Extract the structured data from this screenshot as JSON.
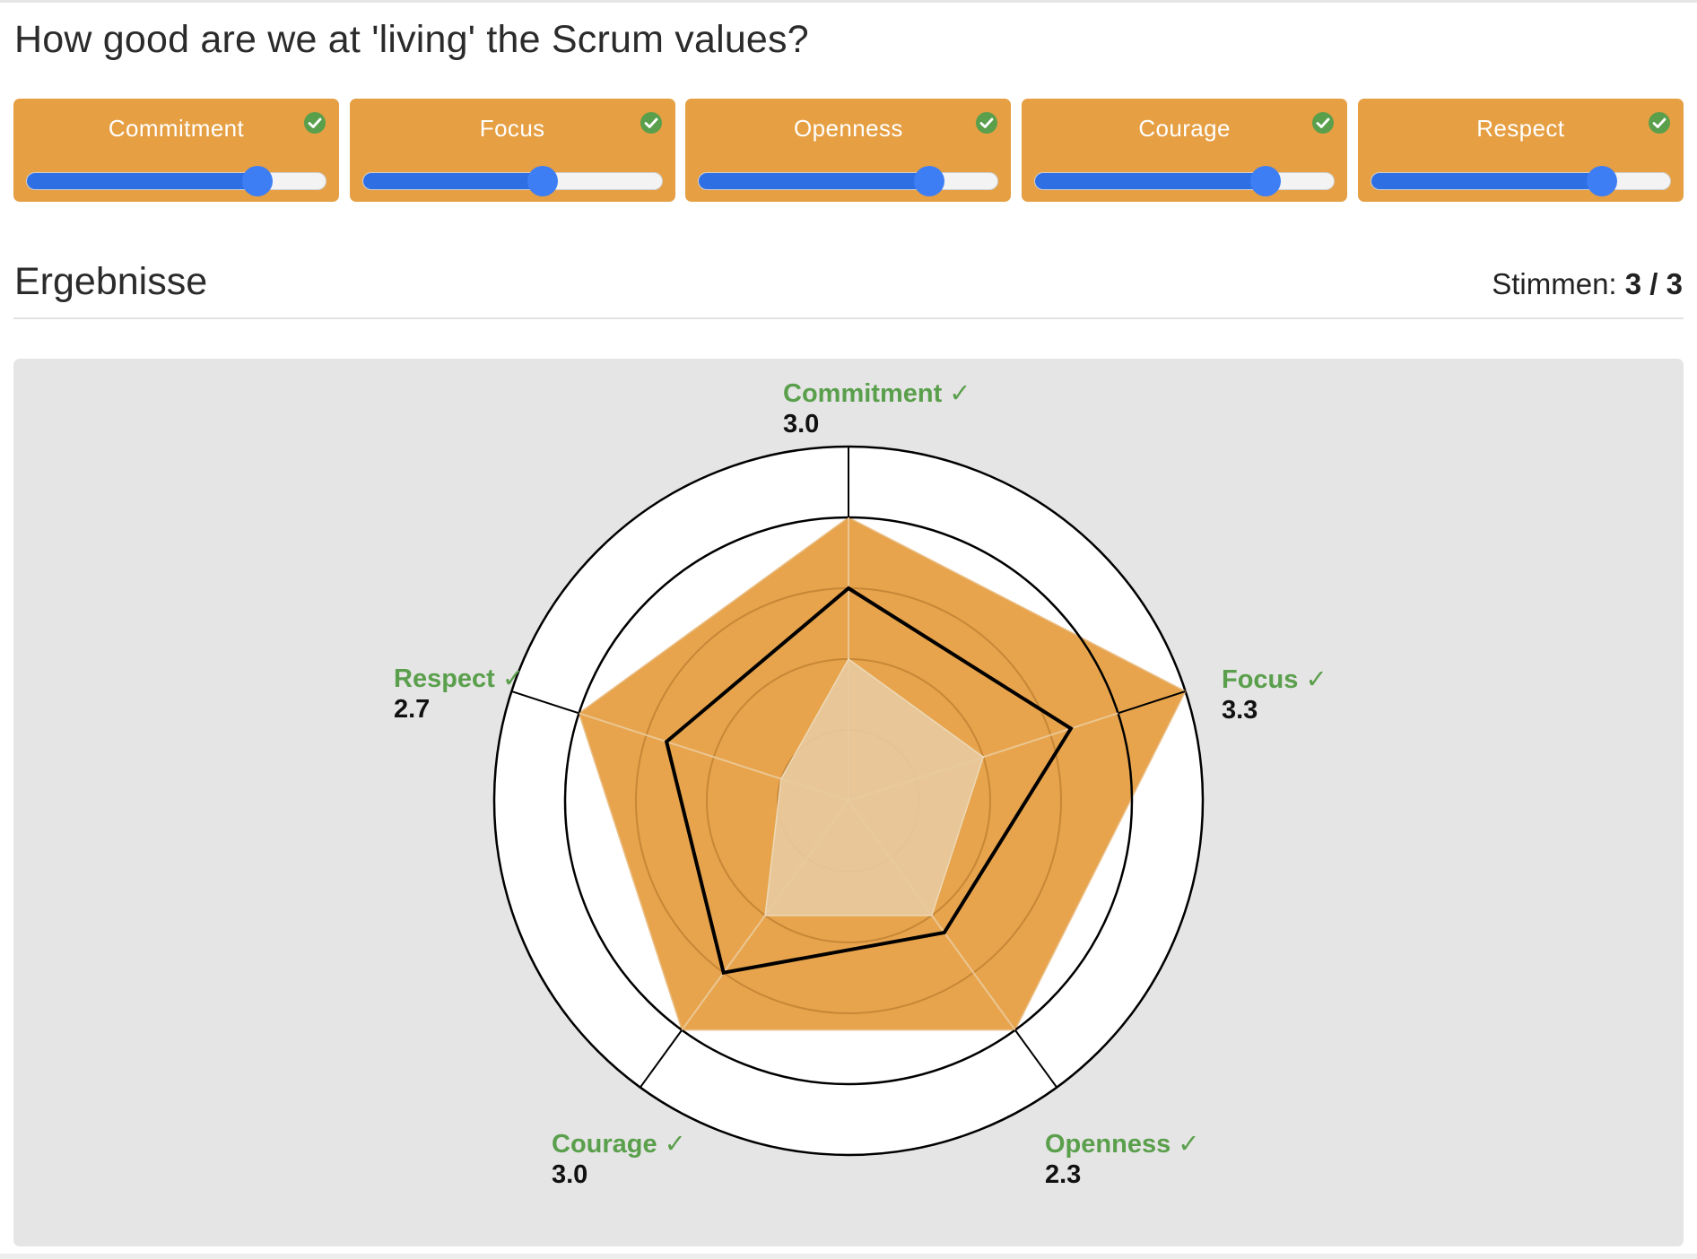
{
  "question": "How good are we at 'living' the Scrum values?",
  "cards": [
    {
      "label": "Commitment",
      "value_fraction": 0.77,
      "voted": true
    },
    {
      "label": "Focus",
      "value_fraction": 0.6,
      "voted": true
    },
    {
      "label": "Openness",
      "value_fraction": 0.77,
      "voted": true
    },
    {
      "label": "Courage",
      "value_fraction": 0.77,
      "voted": true
    },
    {
      "label": "Respect",
      "value_fraction": 0.77,
      "voted": true
    }
  ],
  "results": {
    "title": "Ergebnisse",
    "votes_label": "Stimmen:",
    "votes_value": "3 / 3"
  },
  "colors": {
    "card": "#e69f42",
    "slider": "#3d7ef5",
    "check": "#5a9f4c",
    "chart_fill": "#e69f42"
  },
  "chart_data": {
    "type": "radar",
    "axes": [
      "Commitment",
      "Focus",
      "Openness",
      "Courage",
      "Respect"
    ],
    "check_mark": "✓",
    "value_labels": [
      "3.0",
      "3.3",
      "2.3",
      "3.0",
      "2.7"
    ],
    "r_max": 5,
    "rings": [
      1,
      2,
      3,
      4,
      5
    ],
    "series": [
      {
        "role": "max",
        "values": [
          4,
          5,
          4,
          4,
          4
        ]
      },
      {
        "role": "average",
        "values": [
          3,
          3.3,
          2.3,
          3,
          2.7
        ]
      },
      {
        "role": "min",
        "values": [
          2,
          2,
          2,
          2,
          1
        ]
      }
    ]
  }
}
